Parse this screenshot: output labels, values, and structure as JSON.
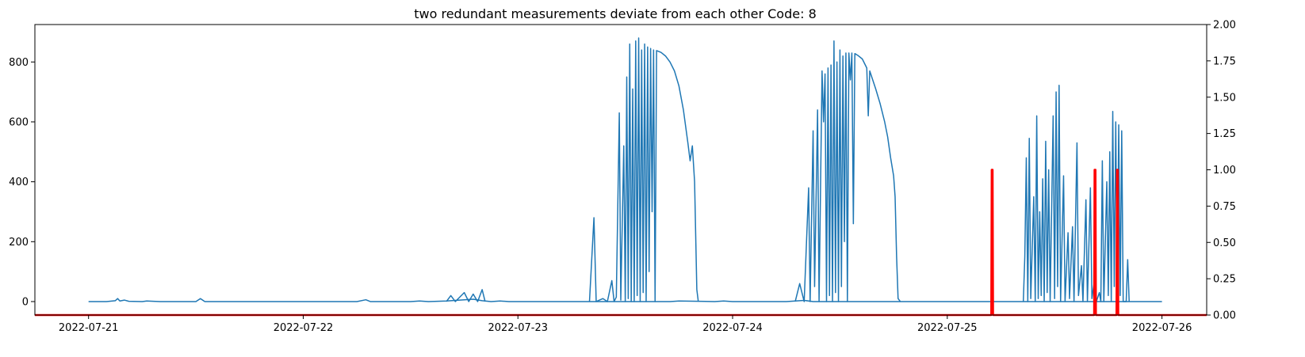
{
  "chart_data": {
    "type": "line",
    "title": "two redundant measurements deviate from each other Code: 8",
    "x_tick_labels": [
      "2022-07-21",
      "2022-07-22",
      "2022-07-23",
      "2022-07-24",
      "2022-07-25",
      "2022-07-26"
    ],
    "x_range": [
      "2022-07-20 18:00",
      "2022-07-26 05:00"
    ],
    "left_axis": {
      "range": [
        -45,
        925
      ],
      "ticks": [
        0,
        200,
        400,
        600,
        800
      ],
      "tick_labels": [
        "0",
        "200",
        "400",
        "600",
        "800"
      ]
    },
    "right_axis": {
      "range": [
        0.0,
        2.0
      ],
      "ticks": [
        0.0,
        0.25,
        0.5,
        0.75,
        1.0,
        1.25,
        1.5,
        1.75,
        2.0
      ],
      "tick_labels": [
        "0.00",
        "0.25",
        "0.50",
        "0.75",
        "1.00",
        "1.25",
        "1.50",
        "1.75",
        "2.00"
      ]
    },
    "grid": false,
    "series": [
      {
        "axis": "left",
        "color": "#1f77b4",
        "points": [
          [
            "2022-07-21 00:00",
            0
          ],
          [
            "2022-07-21 02:00",
            0
          ],
          [
            "2022-07-21 03:00",
            3
          ],
          [
            "2022-07-21 03:15",
            10
          ],
          [
            "2022-07-21 03:30",
            2
          ],
          [
            "2022-07-21 04:00",
            5
          ],
          [
            "2022-07-21 04:30",
            1
          ],
          [
            "2022-07-21 06:00",
            0
          ],
          [
            "2022-07-21 06:30",
            2
          ],
          [
            "2022-07-21 08:00",
            0
          ],
          [
            "2022-07-21 12:00",
            0
          ],
          [
            "2022-07-21 12:30",
            10
          ],
          [
            "2022-07-21 13:00",
            0
          ],
          [
            "2022-07-21 17:00",
            0
          ],
          [
            "2022-07-22 00:00",
            0
          ],
          [
            "2022-07-22 06:00",
            0
          ],
          [
            "2022-07-22 07:00",
            6
          ],
          [
            "2022-07-22 07:30",
            0
          ],
          [
            "2022-07-22 12:00",
            0
          ],
          [
            "2022-07-22 13:00",
            2
          ],
          [
            "2022-07-22 14:00",
            0
          ],
          [
            "2022-07-22 16:00",
            2
          ],
          [
            "2022-07-22 19:00",
            8
          ],
          [
            "2022-07-22 20:00",
            3
          ],
          [
            "2022-07-22 21:00",
            0
          ],
          [
            "2022-07-22 22:00",
            2
          ],
          [
            "2022-07-22 23:00",
            0
          ],
          [
            "2022-07-23 06:00",
            0
          ],
          [
            "2022-07-23 17:00",
            0
          ],
          [
            "2022-07-23 18:00",
            2
          ],
          [
            "2022-07-23 22:00",
            0
          ],
          [
            "2022-07-23 23:00",
            2
          ],
          [
            "2022-07-24 00:00",
            0
          ],
          [
            "2022-07-24 06:00",
            0
          ],
          [
            "2022-07-24 08:00",
            4
          ],
          [
            "2022-07-24 09:00",
            0
          ],
          [
            "2022-07-24 12:00",
            0
          ],
          [
            "2022-07-24 18:00",
            0
          ],
          [
            "2022-07-25 00:00",
            0
          ],
          [
            "2022-07-25 06:00",
            0
          ],
          [
            "2022-07-25 12:00",
            0
          ],
          [
            "2022-07-25 17:00",
            0
          ],
          [
            "2022-07-25 20:00",
            0
          ],
          [
            "2022-07-26 00:00",
            0
          ]
        ]
      },
      {
        "axis": "left",
        "color": "#1f77b4",
        "points": [
          [
            "2022-07-22 16:00",
            0
          ],
          [
            "2022-07-22 16:30",
            20
          ],
          [
            "2022-07-22 17:00",
            0
          ],
          [
            "2022-07-22 18:00",
            30
          ],
          [
            "2022-07-22 18:30",
            0
          ],
          [
            "2022-07-22 19:00",
            25
          ],
          [
            "2022-07-22 19:30",
            0
          ],
          [
            "2022-07-22 20:00",
            40
          ],
          [
            "2022-07-22 20:20",
            0
          ]
        ]
      },
      {
        "axis": "left",
        "color": "#1f77b4",
        "points": [
          [
            "2022-07-23 08:00",
            0
          ],
          [
            "2022-07-23 08:30",
            280
          ],
          [
            "2022-07-23 08:45",
            0
          ],
          [
            "2022-07-23 09:30",
            10
          ],
          [
            "2022-07-23 10:00",
            0
          ],
          [
            "2022-07-23 10:30",
            70
          ],
          [
            "2022-07-23 10:45",
            0
          ],
          [
            "2022-07-23 11:00",
            15
          ],
          [
            "2022-07-23 11:20",
            630
          ],
          [
            "2022-07-23 11:30",
            5
          ],
          [
            "2022-07-23 11:50",
            520
          ],
          [
            "2022-07-23 12:00",
            0
          ],
          [
            "2022-07-23 12:10",
            750
          ],
          [
            "2022-07-23 12:20",
            10
          ],
          [
            "2022-07-23 12:30",
            860
          ],
          [
            "2022-07-23 12:40",
            0
          ],
          [
            "2022-07-23 12:50",
            710
          ],
          [
            "2022-07-23 13:00",
            0
          ],
          [
            "2022-07-23 13:10",
            870
          ],
          [
            "2022-07-23 13:20",
            20
          ],
          [
            "2022-07-23 13:30",
            880
          ],
          [
            "2022-07-23 13:40",
            0
          ],
          [
            "2022-07-23 13:50",
            840
          ],
          [
            "2022-07-23 14:00",
            30
          ],
          [
            "2022-07-23 14:10",
            860
          ],
          [
            "2022-07-23 14:20",
            0
          ],
          [
            "2022-07-23 14:30",
            850
          ],
          [
            "2022-07-23 14:40",
            100
          ],
          [
            "2022-07-23 14:50",
            845
          ],
          [
            "2022-07-23 15:00",
            300
          ],
          [
            "2022-07-23 15:10",
            840
          ],
          [
            "2022-07-23 15:20",
            0
          ],
          [
            "2022-07-23 15:30",
            838
          ],
          [
            "2022-07-23 16:00",
            832
          ],
          [
            "2022-07-23 16:30",
            820
          ],
          [
            "2022-07-23 17:00",
            800
          ],
          [
            "2022-07-23 17:30",
            770
          ],
          [
            "2022-07-23 18:00",
            720
          ],
          [
            "2022-07-23 18:30",
            640
          ],
          [
            "2022-07-23 19:00",
            530
          ],
          [
            "2022-07-23 19:15",
            470
          ],
          [
            "2022-07-23 19:30",
            520
          ],
          [
            "2022-07-23 19:45",
            400
          ],
          [
            "2022-07-23 20:00",
            40
          ],
          [
            "2022-07-23 20:10",
            0
          ]
        ]
      },
      {
        "axis": "left",
        "color": "#1f77b4",
        "points": [
          [
            "2022-07-24 07:00",
            0
          ],
          [
            "2022-07-24 07:30",
            60
          ],
          [
            "2022-07-24 08:00",
            0
          ],
          [
            "2022-07-24 08:30",
            380
          ],
          [
            "2022-07-24 08:40",
            0
          ],
          [
            "2022-07-24 09:00",
            570
          ],
          [
            "2022-07-24 09:10",
            50
          ],
          [
            "2022-07-24 09:30",
            640
          ],
          [
            "2022-07-24 09:40",
            0
          ],
          [
            "2022-07-24 10:00",
            770
          ],
          [
            "2022-07-24 10:10",
            600
          ],
          [
            "2022-07-24 10:20",
            760
          ],
          [
            "2022-07-24 10:30",
            0
          ],
          [
            "2022-07-24 10:40",
            780
          ],
          [
            "2022-07-24 10:50",
            20
          ],
          [
            "2022-07-24 11:00",
            790
          ],
          [
            "2022-07-24 11:10",
            0
          ],
          [
            "2022-07-24 11:20",
            870
          ],
          [
            "2022-07-24 11:30",
            30
          ],
          [
            "2022-07-24 11:40",
            800
          ],
          [
            "2022-07-24 11:50",
            0
          ],
          [
            "2022-07-24 12:00",
            840
          ],
          [
            "2022-07-24 12:10",
            50
          ],
          [
            "2022-07-24 12:20",
            820
          ],
          [
            "2022-07-24 12:30",
            200
          ],
          [
            "2022-07-24 12:40",
            830
          ],
          [
            "2022-07-24 12:50",
            0
          ],
          [
            "2022-07-24 13:00",
            830
          ],
          [
            "2022-07-24 13:10",
            740
          ],
          [
            "2022-07-24 13:20",
            830
          ],
          [
            "2022-07-24 13:30",
            260
          ],
          [
            "2022-07-24 13:40",
            828
          ],
          [
            "2022-07-24 14:00",
            822
          ],
          [
            "2022-07-24 14:30",
            810
          ],
          [
            "2022-07-24 15:00",
            780
          ],
          [
            "2022-07-24 15:10",
            620
          ],
          [
            "2022-07-24 15:20",
            770
          ],
          [
            "2022-07-24 15:40",
            740
          ],
          [
            "2022-07-24 16:00",
            710
          ],
          [
            "2022-07-24 16:30",
            660
          ],
          [
            "2022-07-24 17:00",
            600
          ],
          [
            "2022-07-24 17:20",
            550
          ],
          [
            "2022-07-24 17:40",
            480
          ],
          [
            "2022-07-24 18:00",
            420
          ],
          [
            "2022-07-24 18:10",
            350
          ],
          [
            "2022-07-24 18:20",
            150
          ],
          [
            "2022-07-24 18:30",
            10
          ],
          [
            "2022-07-24 18:45",
            0
          ]
        ]
      },
      {
        "axis": "left",
        "color": "#1f77b4",
        "points": [
          [
            "2022-07-25 08:30",
            0
          ],
          [
            "2022-07-25 08:40",
            150
          ],
          [
            "2022-07-25 08:50",
            480
          ],
          [
            "2022-07-25 09:00",
            0
          ],
          [
            "2022-07-25 09:10",
            545
          ],
          [
            "2022-07-25 09:20",
            10
          ],
          [
            "2022-07-25 09:40",
            350
          ],
          [
            "2022-07-25 09:50",
            0
          ],
          [
            "2022-07-25 10:00",
            620
          ],
          [
            "2022-07-25 10:10",
            10
          ],
          [
            "2022-07-25 10:20",
            300
          ],
          [
            "2022-07-25 10:30",
            20
          ],
          [
            "2022-07-25 10:40",
            410
          ],
          [
            "2022-07-25 10:50",
            0
          ],
          [
            "2022-07-25 11:00",
            535
          ],
          [
            "2022-07-25 11:10",
            30
          ],
          [
            "2022-07-25 11:20",
            440
          ],
          [
            "2022-07-25 11:30",
            0
          ],
          [
            "2022-07-25 11:50",
            620
          ],
          [
            "2022-07-25 12:00",
            10
          ],
          [
            "2022-07-25 12:10",
            700
          ],
          [
            "2022-07-25 12:20",
            50
          ],
          [
            "2022-07-25 12:30",
            722
          ],
          [
            "2022-07-25 12:40",
            0
          ],
          [
            "2022-07-25 13:00",
            420
          ],
          [
            "2022-07-25 13:10",
            0
          ],
          [
            "2022-07-25 13:30",
            230
          ],
          [
            "2022-07-25 13:40",
            10
          ],
          [
            "2022-07-25 14:00",
            250
          ],
          [
            "2022-07-25 14:10",
            0
          ],
          [
            "2022-07-25 14:30",
            530
          ],
          [
            "2022-07-25 14:40",
            20
          ],
          [
            "2022-07-25 15:00",
            120
          ],
          [
            "2022-07-25 15:10",
            0
          ],
          [
            "2022-07-25 15:30",
            340
          ],
          [
            "2022-07-25 15:40",
            0
          ],
          [
            "2022-07-25 16:00",
            380
          ],
          [
            "2022-07-25 16:10",
            10
          ],
          [
            "2022-07-25 16:30",
            80
          ],
          [
            "2022-07-25 16:40",
            0
          ],
          [
            "2022-07-25 17:00",
            30
          ],
          [
            "2022-07-25 17:10",
            0
          ],
          [
            "2022-07-25 17:20",
            470
          ],
          [
            "2022-07-25 17:30",
            0
          ],
          [
            "2022-07-25 17:50",
            400
          ],
          [
            "2022-07-25 18:00",
            20
          ],
          [
            "2022-07-25 18:10",
            500
          ],
          [
            "2022-07-25 18:20",
            0
          ],
          [
            "2022-07-25 18:30",
            635
          ],
          [
            "2022-07-25 18:40",
            50
          ],
          [
            "2022-07-25 18:50",
            600
          ],
          [
            "2022-07-25 19:00",
            0
          ],
          [
            "2022-07-25 19:10",
            590
          ],
          [
            "2022-07-25 19:20",
            20
          ],
          [
            "2022-07-25 19:30",
            570
          ],
          [
            "2022-07-25 19:40",
            0
          ],
          [
            "2022-07-25 20:00",
            0
          ],
          [
            "2022-07-25 20:10",
            140
          ],
          [
            "2022-07-25 20:20",
            0
          ]
        ]
      },
      {
        "axis": "right",
        "color": "#ff0000",
        "points": [
          [
            "2022-07-20 18:00",
            0
          ],
          [
            "2022-07-25 04:55",
            0
          ],
          [
            "2022-07-25 04:58",
            1
          ],
          [
            "2022-07-25 05:04",
            1
          ],
          [
            "2022-07-25 05:07",
            0
          ],
          [
            "2022-07-25 16:25",
            0
          ],
          [
            "2022-07-25 16:28",
            1
          ],
          [
            "2022-07-25 16:34",
            1
          ],
          [
            "2022-07-25 16:37",
            0
          ],
          [
            "2022-07-25 18:55",
            0
          ],
          [
            "2022-07-25 18:58",
            1
          ],
          [
            "2022-07-25 19:04",
            1
          ],
          [
            "2022-07-25 19:07",
            0
          ],
          [
            "2022-07-26 05:00",
            0
          ]
        ]
      }
    ]
  }
}
